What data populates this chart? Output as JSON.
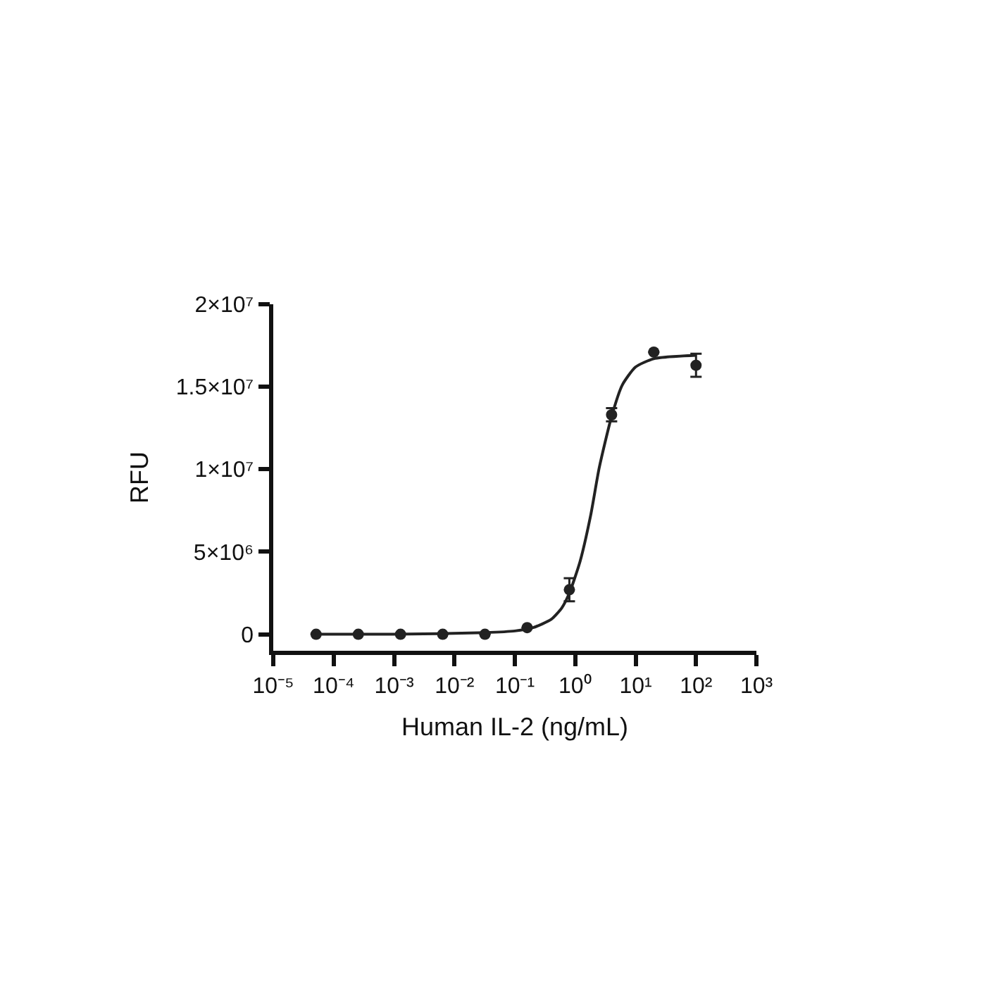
{
  "chart_data": {
    "type": "scatter",
    "xlabel": "Human IL-2 (ng/mL)",
    "ylabel": "RFU",
    "log": "x",
    "xlim": [
      1e-05,
      1000
    ],
    "ylim": [
      -1000000,
      20000000
    ],
    "xticks": [
      {
        "value": 1e-05,
        "label": "10⁻⁵"
      },
      {
        "value": 0.0001,
        "label": "10⁻⁴"
      },
      {
        "value": 0.001,
        "label": "10⁻³"
      },
      {
        "value": 0.01,
        "label": "10⁻²"
      },
      {
        "value": 0.1,
        "label": "10⁻¹"
      },
      {
        "value": 1,
        "label": "10⁰"
      },
      {
        "value": 10,
        "label": "10¹"
      },
      {
        "value": 100,
        "label": "10²"
      },
      {
        "value": 1000,
        "label": "10³"
      }
    ],
    "yticks": [
      0,
      {
        "value": 5000000,
        "label": "5×10⁶"
      },
      {
        "value": 10000000,
        "label": "1×10⁷"
      },
      {
        "value": 15000000,
        "label": "1.5×10⁷"
      },
      {
        "value": 20000000,
        "label": "2×10⁷"
      }
    ],
    "series": [
      {
        "color": "#222222",
        "marker": "circle",
        "x": [
          5.12e-05,
          0.000256,
          0.00128,
          0.0064,
          0.032,
          0.16,
          0.8,
          4,
          20,
          100
        ],
        "values": [
          0,
          0,
          0,
          0,
          0,
          400000,
          2700000,
          13300000,
          17100000,
          16300000
        ],
        "errors": [
          null,
          null,
          null,
          null,
          null,
          null,
          700000,
          400000,
          null,
          700000
        ]
      },
      {
        "type": "line",
        "color": "#222222",
        "marker": "none",
        "line_style": "solid",
        "x": [
          5.12e-05,
          0.001,
          0.032,
          0.1,
          0.2,
          0.4,
          0.6,
          0.8,
          1.2,
          1.8,
          2.5,
          4,
          6,
          10,
          20,
          100
        ],
        "values": [
          0,
          0,
          100000,
          200000,
          400000,
          900000,
          1600000,
          2500000,
          4400000,
          7200000,
          10100000,
          13200000,
          15100000,
          16200000,
          16700000,
          16900000
        ]
      }
    ]
  }
}
